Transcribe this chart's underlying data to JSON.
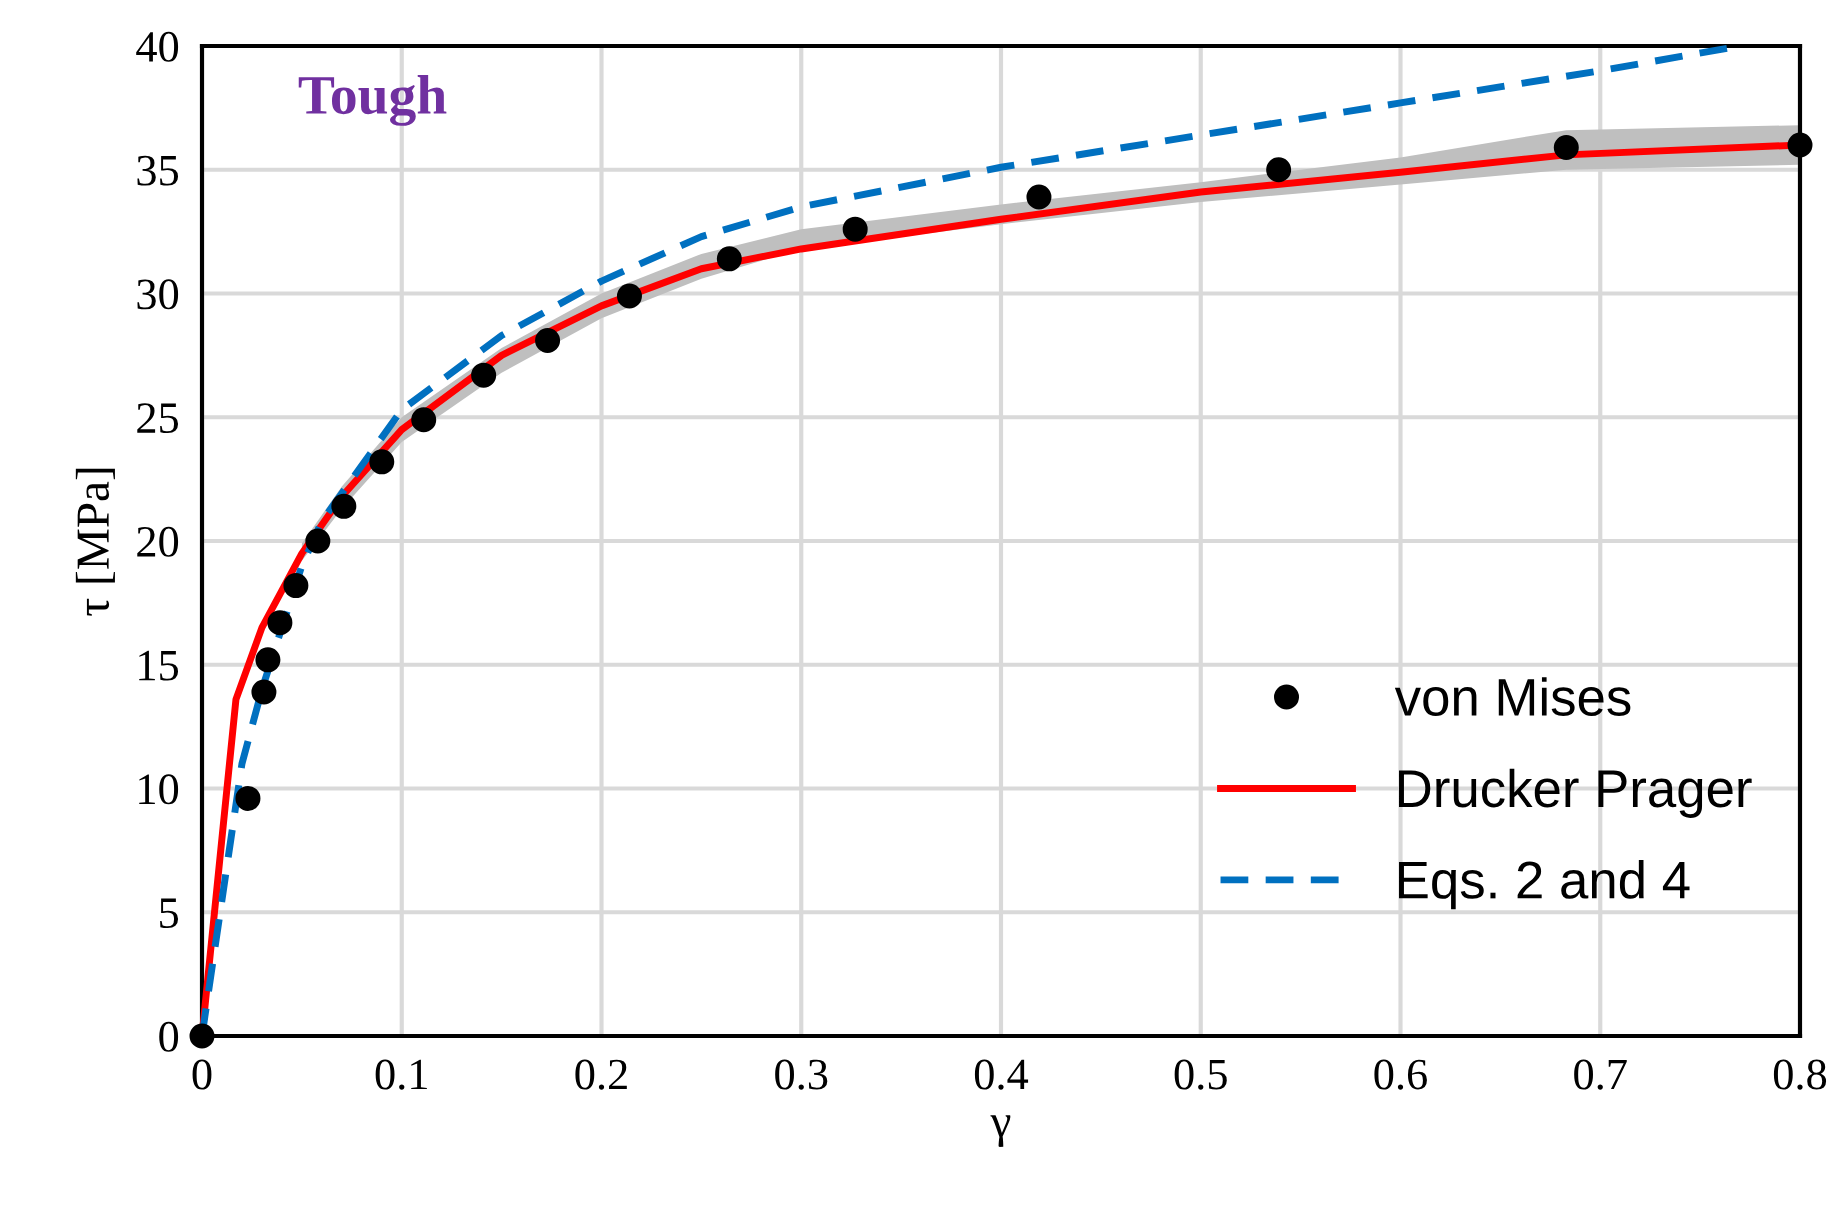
{
  "chart_data": {
    "type": "line",
    "xlabel": "γ",
    "ylabel": "τ [MPa]",
    "annotations": [
      "Tough"
    ],
    "xlim": [
      0,
      0.8
    ],
    "ylim": [
      0,
      40
    ],
    "xticks": [
      0,
      0.1,
      0.2,
      0.3,
      0.4,
      0.5,
      0.6,
      0.7,
      0.8
    ],
    "yticks": [
      0,
      5,
      10,
      15,
      20,
      25,
      30,
      35,
      40
    ],
    "grid": true,
    "legend": "bottom right",
    "series": [
      {
        "name": "von Mises",
        "type": "scatter",
        "marker": "circle",
        "color": "#000000",
        "x": [
          0,
          0.023,
          0.031,
          0.033,
          0.039,
          0.047,
          0.058,
          0.071,
          0.09,
          0.111,
          0.141,
          0.173,
          0.214,
          0.264,
          0.327,
          0.419,
          0.539,
          0.683,
          0.8
        ],
        "values": [
          0,
          9.6,
          13.9,
          15.2,
          16.7,
          18.2,
          20.0,
          21.4,
          23.2,
          24.9,
          26.7,
          28.1,
          29.9,
          31.4,
          32.6,
          33.9,
          35.0,
          35.9,
          36.0
        ]
      },
      {
        "name": "Drucker Prager",
        "line_style": "solid",
        "color": "#ff0000",
        "x": [
          0,
          0.017,
          0.03,
          0.05,
          0.07,
          0.1,
          0.15,
          0.2,
          0.25,
          0.3,
          0.4,
          0.5,
          0.6,
          0.683,
          0.8
        ],
        "values": [
          0,
          13.6,
          16.5,
          19.5,
          21.8,
          24.5,
          27.5,
          29.5,
          31.0,
          31.8,
          33.0,
          34.1,
          34.9,
          35.6,
          36.0
        ],
        "lower": [
          null,
          null,
          null,
          19.2,
          21.3,
          24.0,
          26.8,
          29.0,
          30.6,
          31.8,
          32.8,
          33.7,
          34.4,
          35.0,
          35.2
        ],
        "upper": [
          null,
          null,
          null,
          19.9,
          22.2,
          25.0,
          27.8,
          30.0,
          31.6,
          32.6,
          33.6,
          34.5,
          35.5,
          36.6,
          36.8
        ]
      },
      {
        "name": "Eqs. 2 and 4",
        "line_style": "dashed",
        "color": "#0070c0",
        "x": [
          0,
          0.02,
          0.03,
          0.05,
          0.06,
          0.1,
          0.15,
          0.2,
          0.25,
          0.3,
          0.4,
          0.5,
          0.6,
          0.7,
          0.77
        ],
        "values": [
          0,
          11.0,
          14.0,
          19.0,
          20.8,
          25.3,
          28.3,
          30.5,
          32.3,
          33.5,
          35.1,
          36.4,
          37.7,
          39.0,
          40.0
        ]
      }
    ]
  }
}
